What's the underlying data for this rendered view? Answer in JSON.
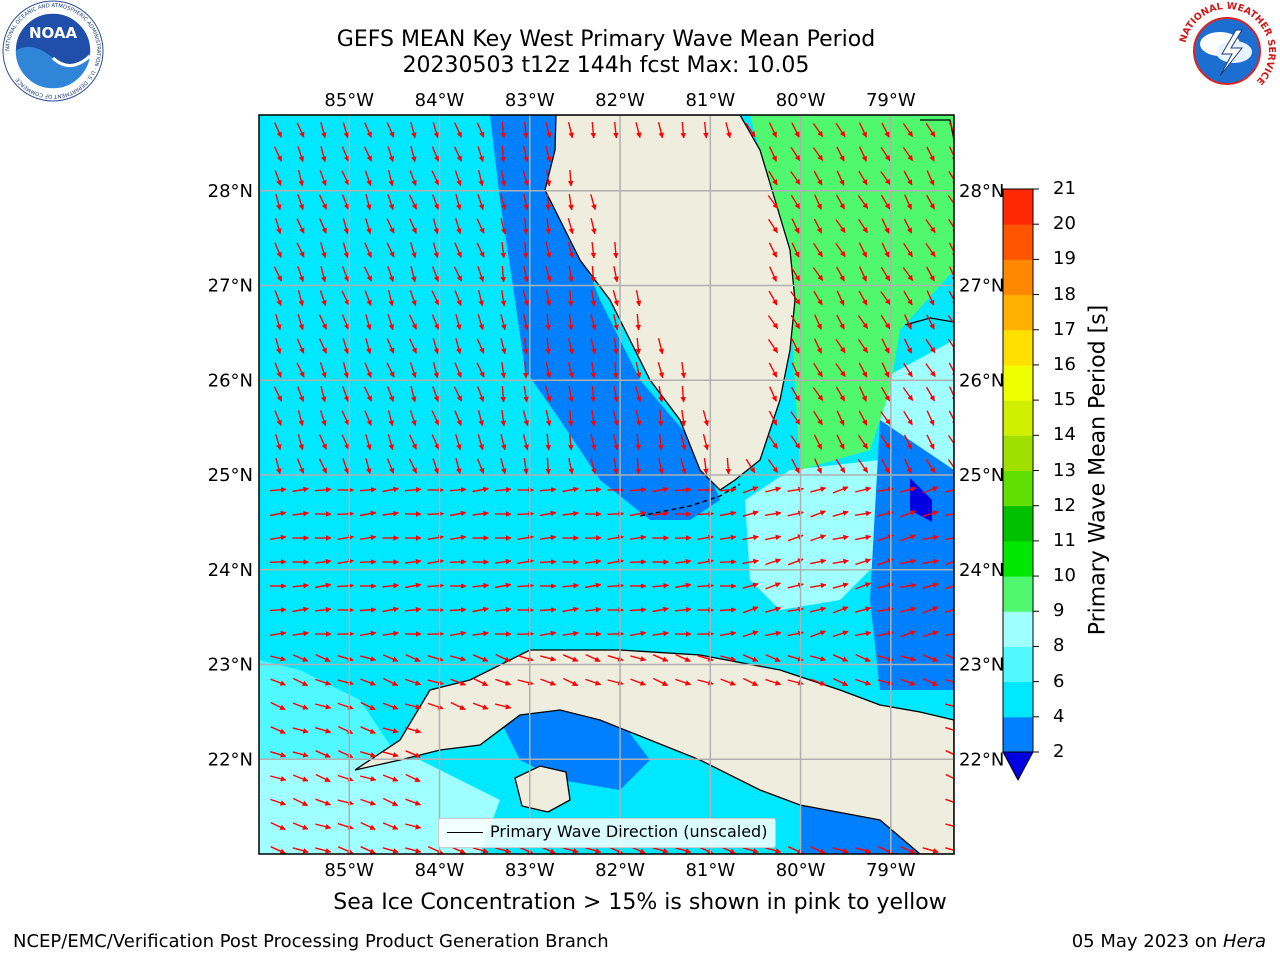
{
  "header": {
    "title_line1": "GEFS MEAN Key West Primary Wave Mean Period",
    "title_line2": "20230503 t12z 144h fcst   Max: 10.05"
  },
  "logos": {
    "noaa": "NOAA",
    "noaa_ring_text": "NATIONAL OCEANIC AND ATMOSPHERIC ADMINISTRATION · U.S. DEPARTMENT OF COMMERCE",
    "nws_ring_text": "NATIONAL WEATHER SERVICE"
  },
  "map": {
    "region": "Key West",
    "lon_labels": [
      "85°W",
      "84°W",
      "83°W",
      "82°W",
      "81°W",
      "80°W",
      "79°W"
    ],
    "lon_values": [
      -85,
      -84,
      -83,
      -82,
      -81,
      -80,
      -79
    ],
    "lat_labels": [
      "28°N",
      "27°N",
      "26°N",
      "25°N",
      "24°N",
      "23°N",
      "22°N"
    ],
    "lat_values": [
      28,
      27,
      26,
      25,
      24,
      23,
      22
    ],
    "lon_range": [
      -86.0,
      -78.3
    ],
    "lat_range": [
      21.0,
      28.8
    ],
    "grid": true,
    "arrow_color": "#ff0000",
    "land_color": "#efedde",
    "coast_color": "#000000"
  },
  "legend": {
    "label": "Primary Wave Direction (unscaled)",
    "position": "bottom-center"
  },
  "colorbar": {
    "title": "Primary Wave Mean Period [s]",
    "tick_labels": [
      "2",
      "4",
      "6",
      "8",
      "9",
      "10",
      "11",
      "12",
      "13",
      "14",
      "15",
      "16",
      "17",
      "18",
      "19",
      "20",
      "21"
    ],
    "levels": [
      2,
      4,
      6,
      8,
      9,
      10,
      11,
      12,
      13,
      14,
      15,
      16,
      17,
      18,
      19,
      20,
      21
    ],
    "colors": [
      "#0080ff",
      "#00e8ff",
      "#50f8ff",
      "#a0ffff",
      "#50f870",
      "#00e800",
      "#00c000",
      "#60e000",
      "#a0e000",
      "#d0f000",
      "#f0ff00",
      "#ffe000",
      "#ffb000",
      "#ff8800",
      "#ff5500",
      "#ff2800",
      "#ff0000"
    ],
    "under_color": "#0000e0"
  },
  "captions": {
    "ice_note": "Sea Ice Concentration > 15% is shown in pink to yellow",
    "footer_left": "NCEP/EMC/Verification Post Processing Product Generation Branch",
    "footer_date": "05 May 2023 on ",
    "footer_host": "Hera"
  }
}
